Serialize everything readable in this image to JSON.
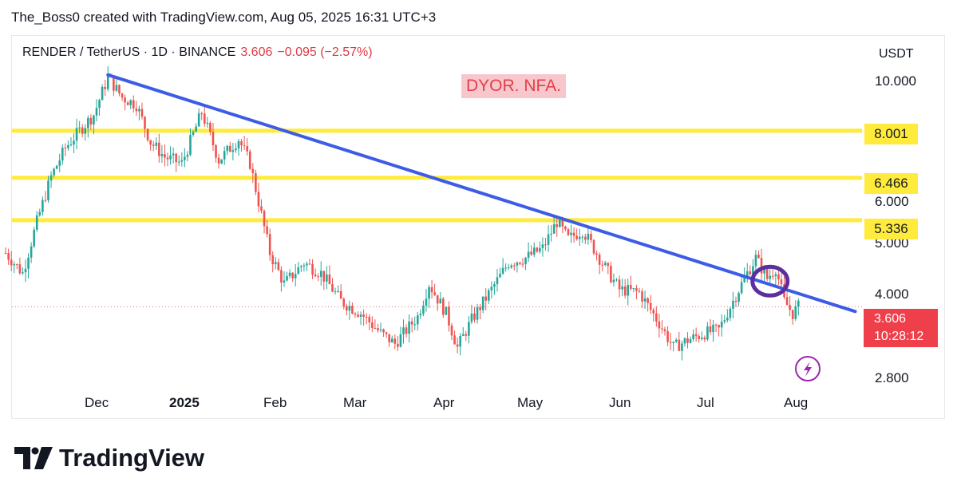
{
  "header": {
    "attribution": "The_Boss0 created with TradingView.com, Aug 05, 2025 16:31 UTC+3"
  },
  "symbol": {
    "name": "RENDER / TetherUS · 1D · BINANCE",
    "price": "3.606",
    "change": "−0.095 (−2.57%)"
  },
  "note": "DYOR. NFA.",
  "currency": "USDT",
  "brand": "TradingView",
  "colors": {
    "up": "#26a69a",
    "down": "#ef5350",
    "trendline": "#3d5ce6",
    "level": "#ffeb3b",
    "circle": "#5b2f9e",
    "price_tag": "#ef3f4a",
    "icon": "#9c27b0"
  },
  "icons": [
    "lightning-icon",
    "tradingview-logo-icon"
  ],
  "chart_data": {
    "type": "candlestick",
    "symbol": "RENDER / TetherUS",
    "interval": "1D",
    "exchange": "BINANCE",
    "scale": "log",
    "y_ticks": [
      "10.000",
      "6.000",
      "5.000",
      "4.000",
      "2.800"
    ],
    "y_tick_values": [
      10.0,
      6.0,
      5.0,
      4.0,
      2.8
    ],
    "x_ticks": [
      "Dec",
      "2025",
      "Feb",
      "Mar",
      "Apr",
      "May",
      "Jun",
      "Jul",
      "Aug"
    ],
    "x_tick_dates": [
      "2024-12-01",
      "2025-01-01",
      "2025-02-01",
      "2025-03-01",
      "2025-04-01",
      "2025-05-01",
      "2025-06-01",
      "2025-07-01",
      "2025-08-01"
    ],
    "horizontal_levels": [
      {
        "label": "8.001",
        "value": 8.001
      },
      {
        "label": "6.466",
        "value": 6.466
      },
      {
        "label": "5.336",
        "value": 5.336
      }
    ],
    "trendline": [
      {
        "date": "2024-12-05",
        "price": 10.3
      },
      {
        "date": "2025-08-25",
        "price": 3.53
      }
    ],
    "last_price": {
      "label": "3.606",
      "value": 3.606,
      "countdown": "10:28:12"
    },
    "price_path": [
      [
        "2024-10-30",
        4.6
      ],
      [
        "2024-11-05",
        4.2
      ],
      [
        "2024-11-10",
        5.3
      ],
      [
        "2024-11-15",
        6.5
      ],
      [
        "2024-11-20",
        7.4
      ],
      [
        "2024-11-25",
        8.0
      ],
      [
        "2024-11-30",
        8.6
      ],
      [
        "2024-12-05",
        10.2
      ],
      [
        "2024-12-10",
        9.3
      ],
      [
        "2024-12-15",
        9.0
      ],
      [
        "2024-12-20",
        7.6
      ],
      [
        "2024-12-25",
        7.1
      ],
      [
        "2024-12-31",
        6.9
      ],
      [
        "2025-01-07",
        8.7
      ],
      [
        "2025-01-13",
        7.0
      ],
      [
        "2025-01-20",
        7.7
      ],
      [
        "2025-01-24",
        6.9
      ],
      [
        "2025-01-31",
        4.6
      ],
      [
        "2025-02-05",
        4.0
      ],
      [
        "2025-02-12",
        4.4
      ],
      [
        "2025-02-18",
        4.2
      ],
      [
        "2025-02-25",
        3.7
      ],
      [
        "2025-03-04",
        3.5
      ],
      [
        "2025-03-11",
        3.2
      ],
      [
        "2025-03-16",
        3.05
      ],
      [
        "2025-03-24",
        3.45
      ],
      [
        "2025-03-28",
        4.0
      ],
      [
        "2025-04-03",
        3.5
      ],
      [
        "2025-04-07",
        3.0
      ],
      [
        "2025-04-12",
        3.4
      ],
      [
        "2025-04-19",
        3.9
      ],
      [
        "2025-04-25",
        4.4
      ],
      [
        "2025-05-01",
        4.5
      ],
      [
        "2025-05-07",
        4.7
      ],
      [
        "2025-05-12",
        5.3
      ],
      [
        "2025-05-16",
        4.9
      ],
      [
        "2025-05-21",
        5.1
      ],
      [
        "2025-05-24",
        4.8
      ],
      [
        "2025-05-29",
        4.3
      ],
      [
        "2025-06-03",
        3.9
      ],
      [
        "2025-06-10",
        3.85
      ],
      [
        "2025-06-17",
        3.35
      ],
      [
        "2025-06-22",
        3.0
      ],
      [
        "2025-06-27",
        3.1
      ],
      [
        "2025-07-03",
        3.2
      ],
      [
        "2025-07-08",
        3.25
      ],
      [
        "2025-07-14",
        3.8
      ],
      [
        "2025-07-18",
        4.2
      ],
      [
        "2025-07-21",
        4.5
      ],
      [
        "2025-07-25",
        4.1
      ],
      [
        "2025-07-28",
        4.3
      ],
      [
        "2025-07-31",
        3.7
      ],
      [
        "2025-08-03",
        3.5
      ],
      [
        "2025-08-05",
        3.606
      ]
    ]
  }
}
